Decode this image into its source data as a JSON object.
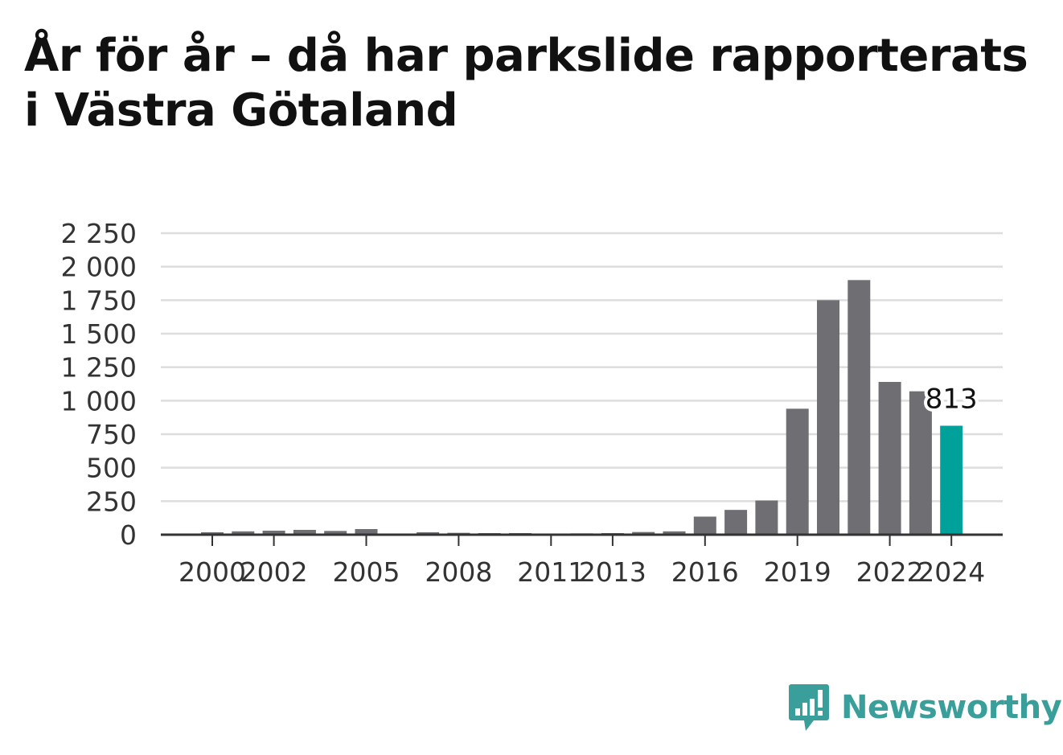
{
  "title": "År för år – då har parkslide rapporterats i Västra Götaland",
  "brand": {
    "name": "Newsworthy",
    "icon": "newsworthy-logo-icon",
    "color": "#3a9e9a"
  },
  "colors": {
    "bar": "#6e6e73",
    "highlight": "#00a19a",
    "grid": "#dddddd",
    "axis": "#333333"
  },
  "chart_data": {
    "type": "bar",
    "title": "År för år – då har parkslide rapporterats i Västra Götaland",
    "xlabel": "",
    "ylabel": "",
    "categories": [
      "2000",
      "2001",
      "2002",
      "2003",
      "2004",
      "2005",
      "2006",
      "2007",
      "2008",
      "2009",
      "2010",
      "2011",
      "2012",
      "2013",
      "2014",
      "2015",
      "2016",
      "2017",
      "2018",
      "2019",
      "2020",
      "2021",
      "2022",
      "2023",
      "2024"
    ],
    "values": [
      18,
      25,
      30,
      36,
      28,
      42,
      5,
      18,
      14,
      12,
      12,
      5,
      10,
      12,
      20,
      25,
      135,
      185,
      255,
      940,
      1750,
      1900,
      1140,
      1070,
      813
    ],
    "highlight_index": 24,
    "x_tick_labels": [
      "2000",
      "2002",
      "2005",
      "2008",
      "2011",
      "2013",
      "2016",
      "2019",
      "2022",
      "2024"
    ],
    "y_ticks": [
      0,
      250,
      500,
      750,
      1000,
      1250,
      1500,
      1750,
      2000,
      2250
    ],
    "y_tick_labels": [
      "0",
      "250",
      "500",
      "750",
      "1 000",
      "1 250",
      "1 500",
      "1 750",
      "2 000",
      "2 250"
    ],
    "ylim": [
      0,
      2250
    ],
    "grid": true,
    "legend": "none",
    "data_labels": [
      {
        "category": "2024",
        "text": "813"
      }
    ]
  }
}
